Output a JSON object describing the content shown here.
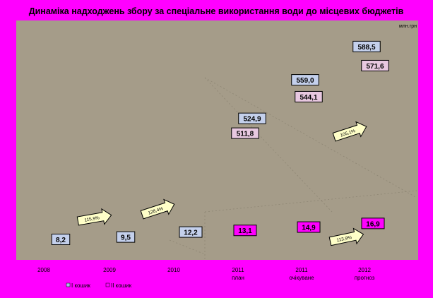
{
  "chart_data": {
    "type": "bar",
    "title": "Динаміка надходжень збору за спеціальне використання води до місцевих бюджетів",
    "unit": "млн.грн",
    "categories": [
      [
        "2008",
        ""
      ],
      [
        "2009",
        ""
      ],
      [
        "2010",
        ""
      ],
      [
        "2011",
        "план"
      ],
      [
        "2011",
        "очікуване"
      ],
      [
        "2012",
        "прогноз"
      ]
    ],
    "series": [
      {
        "name": "І кошик",
        "color": "#C4D0EC",
        "values": [
          null,
          null,
          null,
          524.9,
          559.0,
          588.5
        ],
        "labels": [
          "",
          "",
          "",
          "524,9",
          "559,0",
          "588,5"
        ]
      },
      {
        "name": "ІІ кошик",
        "color": "#E8C8E0",
        "values": [
          null,
          null,
          null,
          511.8,
          544.1,
          571.6
        ],
        "labels": [
          "",
          "",
          "",
          "511,8",
          "544,1",
          "571,6"
        ]
      },
      {
        "name": "",
        "color": "#C4D0EC",
        "values": [
          8.2,
          9.5,
          12.2,
          null,
          null,
          null
        ],
        "labels": [
          "8,2",
          "9,5",
          "12,2",
          "",
          "",
          ""
        ]
      },
      {
        "name": "",
        "color": "#FF00FF",
        "values": [
          null,
          null,
          null,
          13.1,
          14.9,
          16.9
        ],
        "labels": [
          "",
          "",
          "",
          "13,1",
          "14,9",
          "16,9"
        ]
      }
    ],
    "growth_arrows": [
      {
        "text": "115,9%"
      },
      {
        "text": "128,4%"
      },
      {
        "text": "105,1%"
      },
      {
        "text": "113,9%"
      }
    ],
    "legend": [
      {
        "label": "І кошик",
        "color": "#A9B8E0"
      },
      {
        "label": "ІІ кошик",
        "color": "#FF00FF"
      }
    ],
    "colors": {
      "background": "#FF00FF",
      "plot_area": "#A59C89",
      "arrow_fill": "#FFFFC8"
    }
  }
}
